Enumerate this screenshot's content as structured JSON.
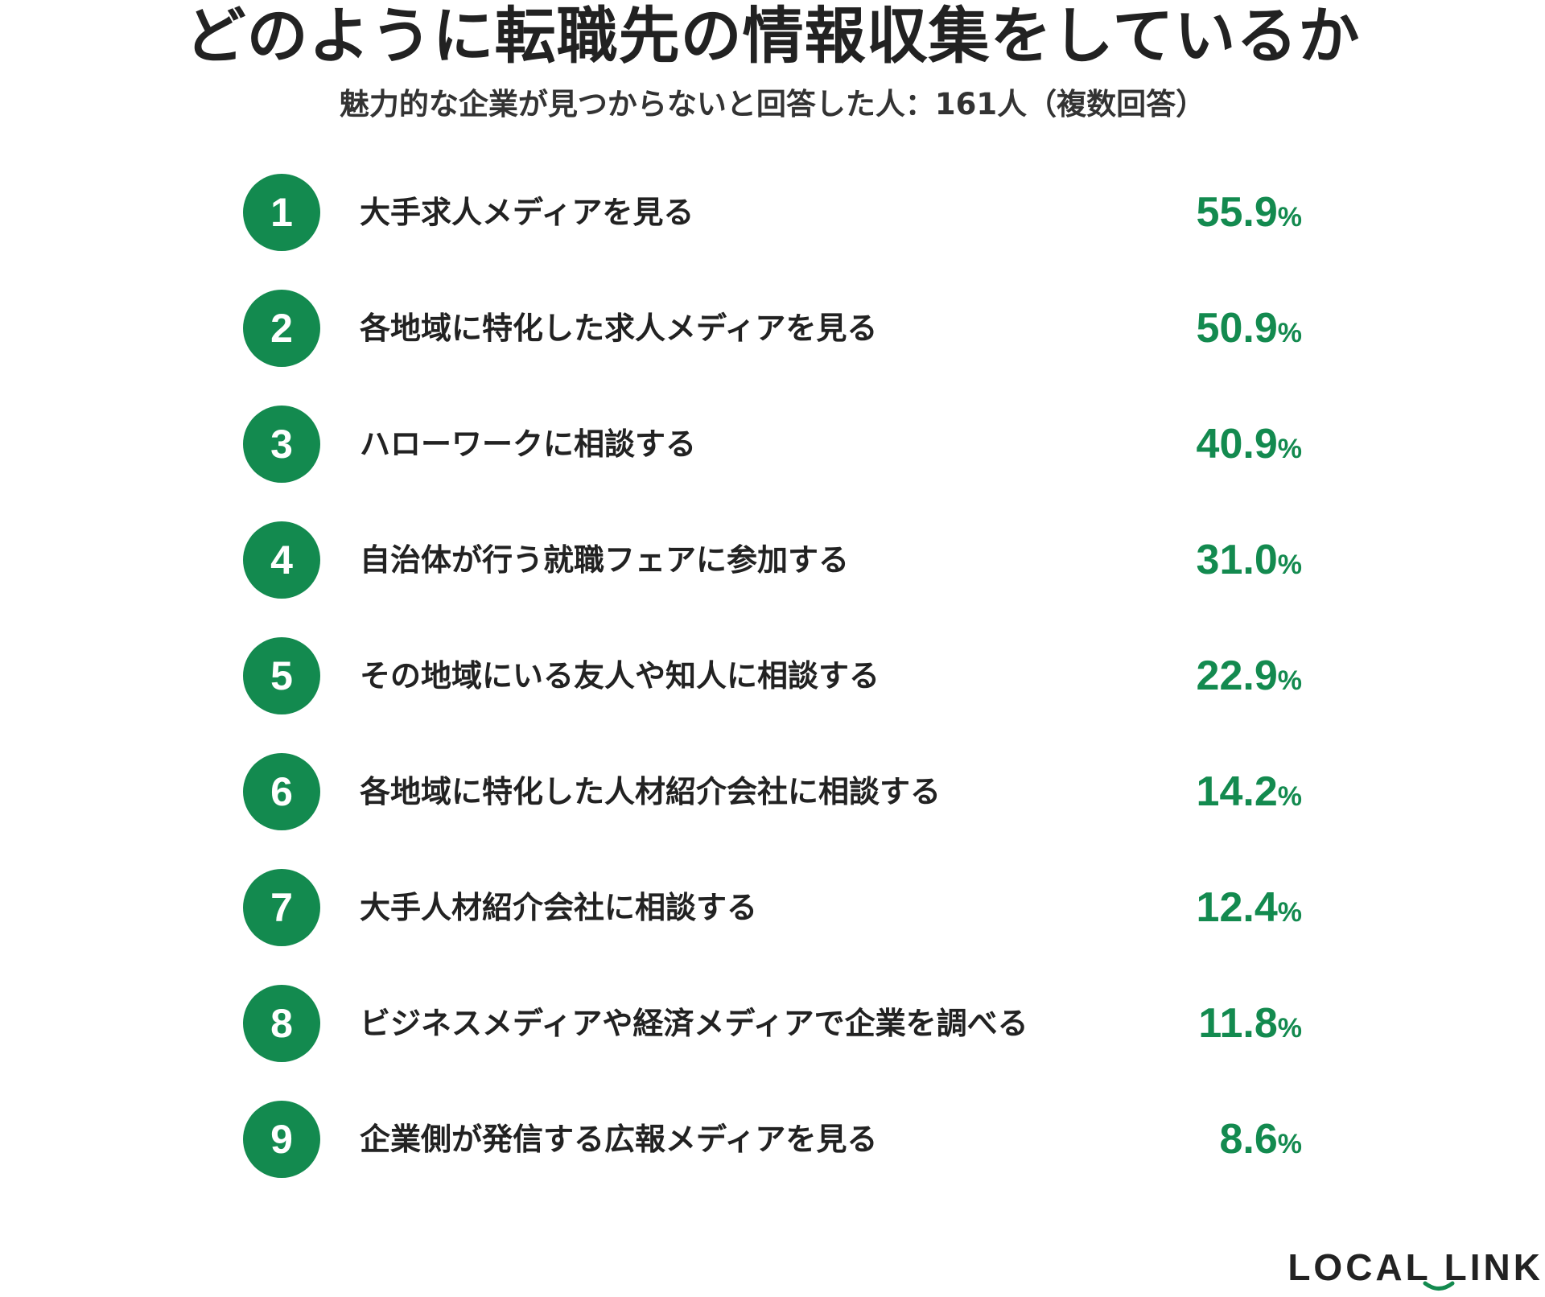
{
  "title": "どのように転職先の情報収集をしているか",
  "subtitle": "魅力的な企業が見つからないと回答した人：161人（複数回答）",
  "brand": "LOCAL LINK",
  "colors": {
    "accent": "#138a4f",
    "text": "#222222",
    "background": "#ffffff"
  },
  "chart_data": {
    "type": "table",
    "title": "どのように転職先の情報収集をしているか",
    "subtitle": "魅力的な企業が見つからないと回答した人：161人（複数回答）",
    "unit": "%",
    "rows": [
      {
        "rank": "1",
        "label": "大手求人メディアを見る",
        "value": "55.9"
      },
      {
        "rank": "2",
        "label": "各地域に特化した求人メディアを見る",
        "value": "50.9"
      },
      {
        "rank": "3",
        "label": "ハローワークに相談する",
        "value": "40.9"
      },
      {
        "rank": "4",
        "label": "自治体が行う就職フェアに参加する",
        "value": "31.0"
      },
      {
        "rank": "5",
        "label": "その地域にいる友人や知人に相談する",
        "value": "22.9"
      },
      {
        "rank": "6",
        "label": "各地域に特化した人材紹介会社に相談する",
        "value": "14.2"
      },
      {
        "rank": "7",
        "label": "大手人材紹介会社に相談する",
        "value": "12.4"
      },
      {
        "rank": "8",
        "label": "ビジネスメディアや経済メディアで企業を調べる",
        "value": "11.8"
      },
      {
        "rank": "9",
        "label": "企業側が発信する広報メディアを見る",
        "value": "8.6"
      }
    ]
  }
}
